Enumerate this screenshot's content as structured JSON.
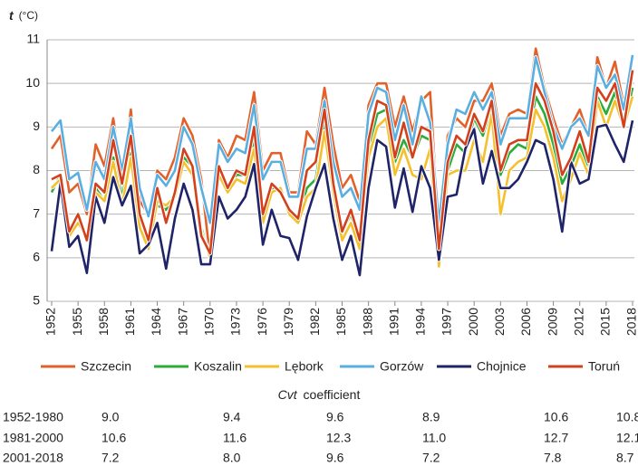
{
  "chart_data": {
    "type": "line",
    "y_label_var": "t",
    "y_label_unit": "(°C)",
    "x": [
      1952,
      1953,
      1954,
      1955,
      1956,
      1957,
      1958,
      1959,
      1960,
      1961,
      1962,
      1963,
      1964,
      1965,
      1966,
      1967,
      1968,
      1969,
      1970,
      1971,
      1972,
      1973,
      1974,
      1975,
      1976,
      1977,
      1978,
      1979,
      1980,
      1981,
      1982,
      1983,
      1984,
      1985,
      1986,
      1987,
      1988,
      1989,
      1990,
      1991,
      1992,
      1993,
      1994,
      1995,
      1996,
      1997,
      1998,
      1999,
      2000,
      2001,
      2002,
      2003,
      2004,
      2005,
      2006,
      2007,
      2008,
      2009,
      2010,
      2011,
      2012,
      2013,
      2014,
      2015,
      2016,
      2017,
      2018
    ],
    "xlim": [
      1952,
      2018
    ],
    "xticks": [
      1952,
      1955,
      1958,
      1961,
      1964,
      1967,
      1970,
      1973,
      1976,
      1979,
      1982,
      1985,
      1988,
      1991,
      1994,
      1997,
      2000,
      2003,
      2006,
      2009,
      2012,
      2015,
      2018
    ],
    "ylim": [
      5,
      11
    ],
    "yticks": [
      5,
      6,
      7,
      8,
      9,
      10,
      11
    ],
    "grid": true,
    "series": [
      {
        "name": "Szczecin",
        "color": "#e2612a",
        "values": [
          8.5,
          8.8,
          7.5,
          7.7,
          7.0,
          8.6,
          8.1,
          9.2,
          7.8,
          9.4,
          7.3,
          7.0,
          8.0,
          7.8,
          8.3,
          9.2,
          8.8,
          7.8,
          6.0,
          8.7,
          8.3,
          8.8,
          8.7,
          9.8,
          8.0,
          8.4,
          8.4,
          7.5,
          7.5,
          8.9,
          8.6,
          9.9,
          8.6,
          7.6,
          7.9,
          7.3,
          9.5,
          10.0,
          10.0,
          9.0,
          9.7,
          8.9,
          9.6,
          9.8,
          6.6,
          8.8,
          9.2,
          9.0,
          9.6,
          9.6,
          10.0,
          8.8,
          9.3,
          9.4,
          9.3,
          10.8,
          9.9,
          9.2,
          8.6,
          9.0,
          9.4,
          8.8,
          10.6,
          9.9,
          10.5,
          9.5,
          10.3
        ]
      },
      {
        "name": "Koszalin",
        "color": "#2bab38",
        "values": [
          7.5,
          7.9,
          6.6,
          6.8,
          6.5,
          7.6,
          7.3,
          8.3,
          7.4,
          8.4,
          6.7,
          6.2,
          7.2,
          7.1,
          7.5,
          8.3,
          8.1,
          6.7,
          6.0,
          8.0,
          7.6,
          7.9,
          7.9,
          8.7,
          7.0,
          7.6,
          7.6,
          7.0,
          6.9,
          7.6,
          7.8,
          9.1,
          7.7,
          6.6,
          7.0,
          6.3,
          8.5,
          9.3,
          9.4,
          8.2,
          8.7,
          8.3,
          8.8,
          8.7,
          6.1,
          8.0,
          8.6,
          8.4,
          9.2,
          8.8,
          9.5,
          7.9,
          8.4,
          8.6,
          8.5,
          9.7,
          9.3,
          8.6,
          7.7,
          8.1,
          8.6,
          8.0,
          9.7,
          9.3,
          9.8,
          9.0,
          9.9
        ]
      },
      {
        "name": "Lębork",
        "color": "#f4c02c",
        "values": [
          7.6,
          7.8,
          6.5,
          6.8,
          6.5,
          7.5,
          7.3,
          8.2,
          7.2,
          8.3,
          6.7,
          6.2,
          7.3,
          7.2,
          7.4,
          8.2,
          7.9,
          6.6,
          6.0,
          7.9,
          7.5,
          7.8,
          7.7,
          8.5,
          6.8,
          7.5,
          7.6,
          7.0,
          6.8,
          7.4,
          7.6,
          8.9,
          7.5,
          6.4,
          6.8,
          6.2,
          8.3,
          9.0,
          9.2,
          7.9,
          8.5,
          7.9,
          7.8,
          8.5,
          5.8,
          7.9,
          8.0,
          8.0,
          8.7,
          8.2,
          9.3,
          7.0,
          8.0,
          8.2,
          8.3,
          9.4,
          9.0,
          8.3,
          7.3,
          7.8,
          8.4,
          7.9,
          9.6,
          9.0,
          9.6,
          9.0,
          9.7
        ]
      },
      {
        "name": "Gorzów",
        "color": "#5aafe0",
        "values": [
          8.9,
          9.15,
          7.8,
          7.95,
          7.1,
          8.2,
          7.8,
          9.0,
          8.0,
          9.2,
          7.6,
          6.95,
          7.9,
          7.65,
          8.0,
          9.0,
          8.6,
          7.6,
          6.8,
          8.6,
          8.2,
          8.5,
          8.4,
          9.5,
          7.8,
          8.2,
          8.2,
          7.4,
          7.4,
          8.5,
          8.5,
          9.6,
          8.2,
          7.4,
          7.6,
          7.1,
          9.3,
          9.9,
          9.8,
          8.7,
          9.5,
          8.6,
          9.7,
          9.1,
          6.8,
          8.6,
          9.4,
          9.3,
          9.8,
          9.4,
          9.8,
          8.6,
          9.2,
          9.2,
          9.2,
          10.6,
          9.8,
          9.0,
          8.5,
          9.0,
          9.2,
          8.8,
          10.4,
          9.9,
          10.2,
          9.4,
          10.65
        ]
      },
      {
        "name": "Chojnice",
        "color": "#1f2468",
        "values": [
          6.15,
          7.7,
          6.25,
          6.5,
          5.65,
          7.4,
          6.8,
          7.85,
          7.2,
          7.65,
          6.1,
          6.3,
          6.8,
          5.75,
          6.9,
          7.7,
          7.1,
          5.85,
          5.85,
          7.4,
          6.9,
          7.1,
          7.4,
          8.15,
          6.3,
          7.1,
          6.5,
          6.45,
          5.95,
          6.95,
          7.6,
          8.15,
          6.9,
          5.95,
          6.5,
          5.6,
          7.6,
          8.7,
          8.55,
          7.15,
          8.05,
          7.05,
          8.1,
          7.6,
          5.95,
          7.4,
          7.45,
          8.5,
          8.95,
          7.7,
          8.45,
          7.6,
          7.6,
          7.8,
          8.2,
          8.7,
          8.6,
          7.8,
          6.6,
          8.2,
          7.7,
          7.8,
          9.0,
          9.05,
          8.6,
          8.2,
          9.15
        ]
      },
      {
        "name": "Toruń",
        "color": "#d2401c",
        "values": [
          7.8,
          7.9,
          6.6,
          7.0,
          6.4,
          7.7,
          7.5,
          8.7,
          7.7,
          8.8,
          7.0,
          6.4,
          7.6,
          6.8,
          7.5,
          8.5,
          8.1,
          6.5,
          6.1,
          8.1,
          7.6,
          8.0,
          7.9,
          9.0,
          7.0,
          7.7,
          7.5,
          7.1,
          6.9,
          8.0,
          8.2,
          9.4,
          7.7,
          6.6,
          7.1,
          6.4,
          8.7,
          9.6,
          9.5,
          8.3,
          9.1,
          8.3,
          9.0,
          8.9,
          6.2,
          8.2,
          8.8,
          8.6,
          9.3,
          8.9,
          9.6,
          8.0,
          8.6,
          8.7,
          8.7,
          10.0,
          9.6,
          8.9,
          7.9,
          8.3,
          8.9,
          8.2,
          9.9,
          9.6,
          10.0,
          9.0,
          10.3
        ]
      }
    ]
  },
  "table": {
    "title_var": "Cvt",
    "title_rest": "coefficient",
    "rows": [
      [
        "1952-1980",
        "9.0",
        "9.4",
        "9.6",
        "8.9",
        "10.6",
        "10.8"
      ],
      [
        "1981-2000",
        "10.6",
        "11.6",
        "12.3",
        "11.0",
        "12.7",
        "12.1"
      ],
      [
        "2001-2018",
        "7.2",
        "8.0",
        "9.6",
        "7.2",
        "7.8",
        "8.7"
      ]
    ]
  }
}
